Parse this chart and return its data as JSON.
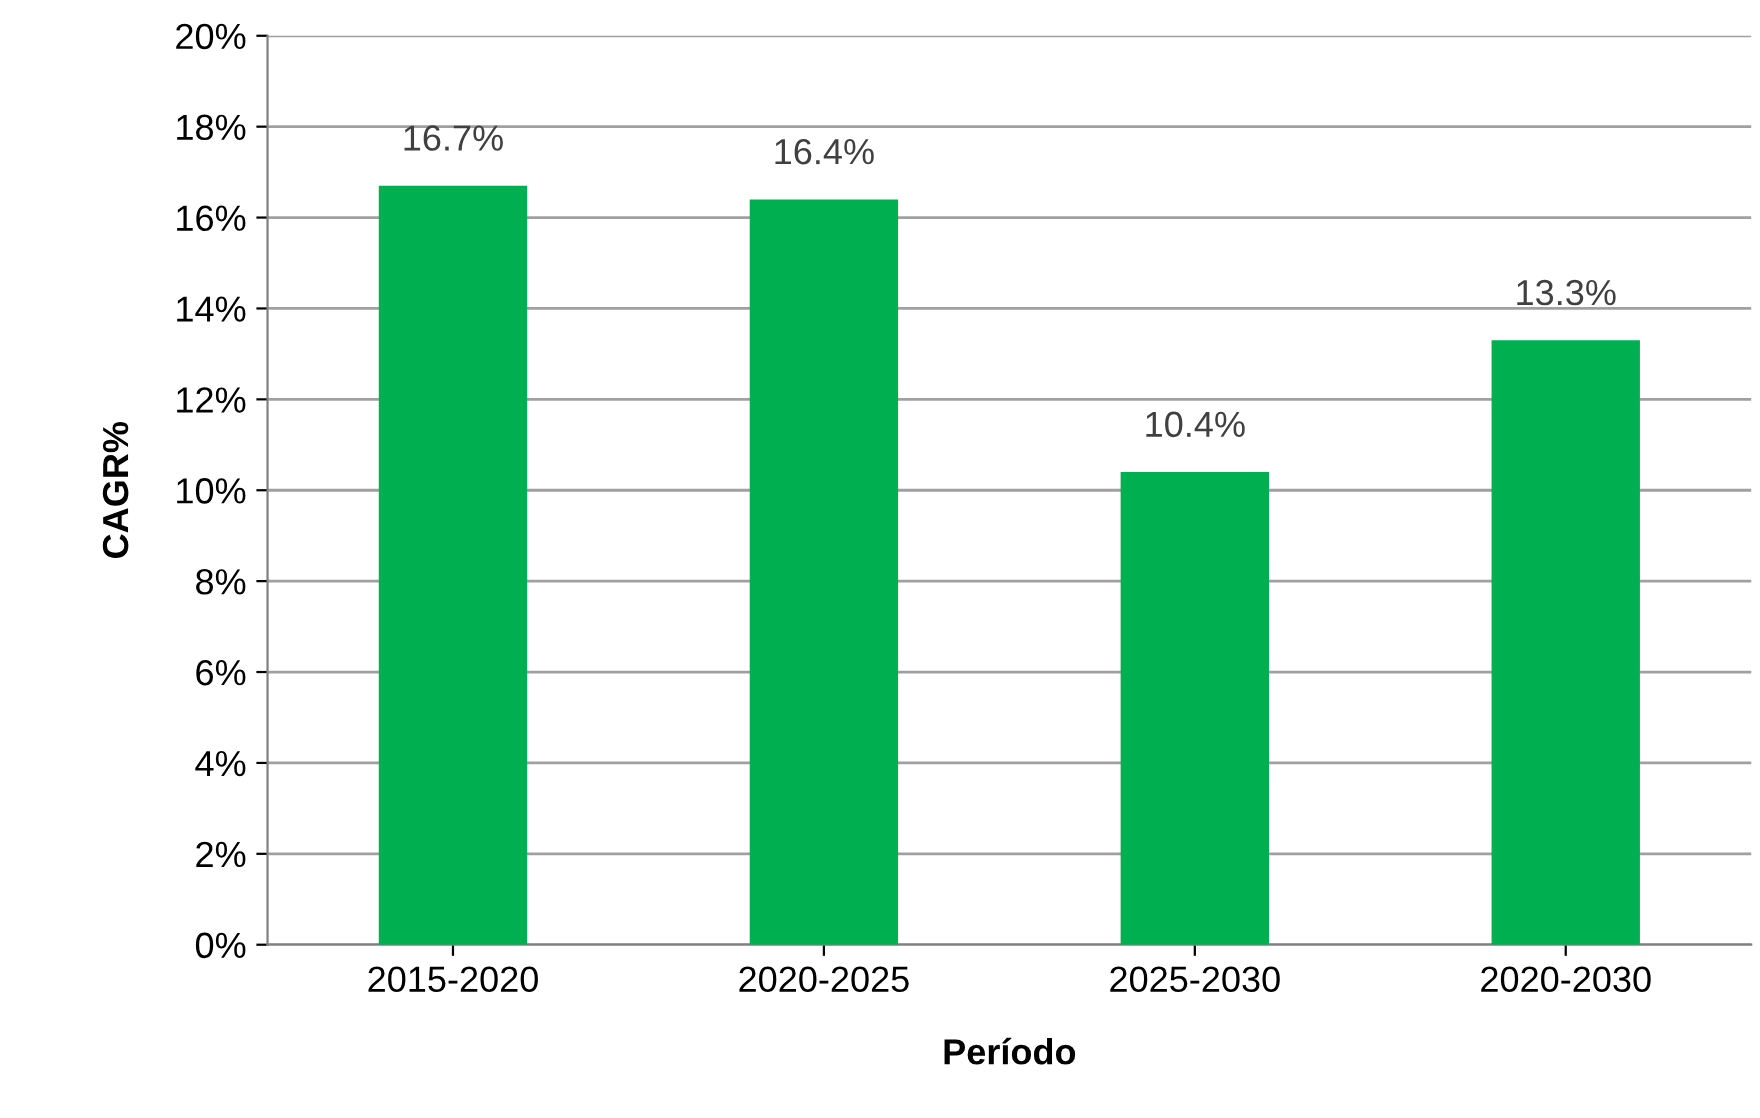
{
  "chart_data": {
    "type": "bar",
    "xlabel": "Período",
    "ylabel": "CAGR%",
    "categories": [
      "2015-2020",
      "2020-2025",
      "2025-2030",
      "2020-2030"
    ],
    "values": [
      16.7,
      16.4,
      10.4,
      13.3
    ],
    "value_labels": [
      "16.7%",
      "16.4%",
      "10.4%",
      "13.3%"
    ],
    "color": "#00b050",
    "ylim": [
      0,
      20
    ],
    "yticks": [
      {
        "value": 0,
        "label": "0%"
      },
      {
        "value": 2,
        "label": "2%"
      },
      {
        "value": 4,
        "label": "4%"
      },
      {
        "value": 6,
        "label": "6%"
      },
      {
        "value": 8,
        "label": "8%"
      },
      {
        "value": 10,
        "label": "10%"
      },
      {
        "value": 12,
        "label": "12%"
      },
      {
        "value": 14,
        "label": "14%"
      },
      {
        "value": 16,
        "label": "16%"
      },
      {
        "value": 18,
        "label": "18%"
      },
      {
        "value": 20,
        "label": "20%"
      }
    ],
    "grid": "y",
    "legend": false
  }
}
